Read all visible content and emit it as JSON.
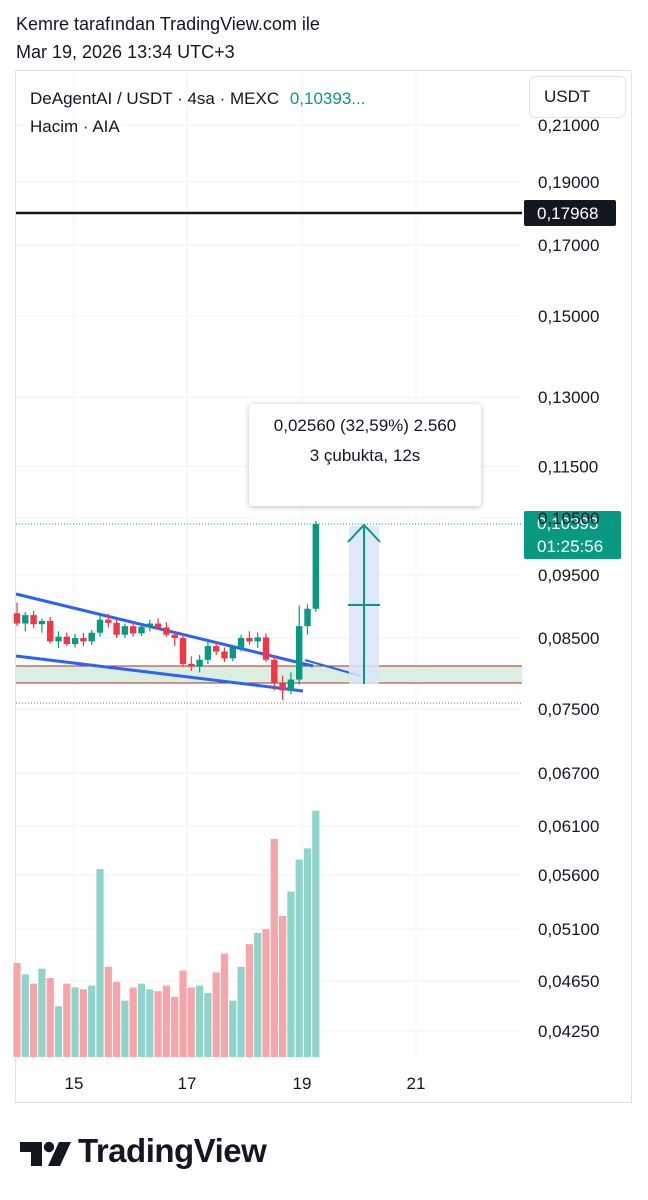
{
  "header": {
    "line1": "Kemre tarafından TradingView.com ile",
    "line2": "Mar 19, 2026 13:34 UTC+3"
  },
  "legend": {
    "symbol": "DeAgentAI / USDT · 4sa · MEXC",
    "price": "0,10393...",
    "volume_label": "Hacim · AIA"
  },
  "currency_button": "USDT",
  "measure": {
    "line1": "0,02560 (32,59%) 2.560",
    "line2": "3 çubukta, 12s"
  },
  "brand": "TradingView",
  "colors": {
    "up": "#089981",
    "down": "#f23645",
    "up_vol": "#8fd3cb",
    "down_vol": "#f6a5a9",
    "trendline": "#2962ff",
    "hline": "#131722",
    "range_fill": "#dbefe1",
    "range_line": "#b22833"
  },
  "chart_data": {
    "type": "candlestick",
    "price_axis_labels": [
      "0,21000",
      "0,19000",
      "0,17000",
      "0,15000",
      "0,13000",
      "0,11500",
      "0,10500",
      "0,09500",
      "0,08500",
      "0,07500",
      "0,06700",
      "0,06100",
      "0,05600",
      "0,05100",
      "0,04650",
      "0,04250"
    ],
    "price_axis_scale": "log",
    "x_tick_labels": [
      "15",
      "17",
      "19",
      "21"
    ],
    "horizontal_line": {
      "value": 0.17968,
      "label": "0,17968"
    },
    "last_price": {
      "value": 0.10393,
      "label": "0,10393",
      "countdown": "01:25:56"
    },
    "candles": [
      {
        "o": 0.0888,
        "h": 0.0905,
        "l": 0.0868,
        "c": 0.0872
      },
      {
        "o": 0.0872,
        "h": 0.089,
        "l": 0.086,
        "c": 0.0885
      },
      {
        "o": 0.0885,
        "h": 0.0892,
        "l": 0.0865,
        "c": 0.0871
      },
      {
        "o": 0.0871,
        "h": 0.088,
        "l": 0.0858,
        "c": 0.0876
      },
      {
        "o": 0.0876,
        "h": 0.0882,
        "l": 0.0842,
        "c": 0.0845
      },
      {
        "o": 0.0845,
        "h": 0.086,
        "l": 0.0835,
        "c": 0.0852
      },
      {
        "o": 0.0852,
        "h": 0.0858,
        "l": 0.0838,
        "c": 0.0841
      },
      {
        "o": 0.0841,
        "h": 0.0856,
        "l": 0.0836,
        "c": 0.085
      },
      {
        "o": 0.085,
        "h": 0.0858,
        "l": 0.0838,
        "c": 0.0845
      },
      {
        "o": 0.0845,
        "h": 0.0862,
        "l": 0.084,
        "c": 0.0858
      },
      {
        "o": 0.0858,
        "h": 0.0885,
        "l": 0.0852,
        "c": 0.0878
      },
      {
        "o": 0.0878,
        "h": 0.0887,
        "l": 0.0866,
        "c": 0.0873
      },
      {
        "o": 0.0873,
        "h": 0.0878,
        "l": 0.085,
        "c": 0.0855
      },
      {
        "o": 0.0855,
        "h": 0.0872,
        "l": 0.085,
        "c": 0.0868
      },
      {
        "o": 0.0868,
        "h": 0.0874,
        "l": 0.0852,
        "c": 0.0857
      },
      {
        "o": 0.0857,
        "h": 0.0872,
        "l": 0.0853,
        "c": 0.0867
      },
      {
        "o": 0.0867,
        "h": 0.0878,
        "l": 0.086,
        "c": 0.0872
      },
      {
        "o": 0.0872,
        "h": 0.088,
        "l": 0.0862,
        "c": 0.0866
      },
      {
        "o": 0.0866,
        "h": 0.0874,
        "l": 0.0852,
        "c": 0.0855
      },
      {
        "o": 0.0855,
        "h": 0.086,
        "l": 0.0838,
        "c": 0.085
      },
      {
        "o": 0.085,
        "h": 0.0856,
        "l": 0.0808,
        "c": 0.0812
      },
      {
        "o": 0.0812,
        "h": 0.0823,
        "l": 0.0802,
        "c": 0.0808
      },
      {
        "o": 0.0808,
        "h": 0.0825,
        "l": 0.08,
        "c": 0.0818
      },
      {
        "o": 0.0818,
        "h": 0.0845,
        "l": 0.0812,
        "c": 0.0838
      },
      {
        "o": 0.0838,
        "h": 0.0845,
        "l": 0.0825,
        "c": 0.083
      },
      {
        "o": 0.083,
        "h": 0.0836,
        "l": 0.0815,
        "c": 0.082
      },
      {
        "o": 0.082,
        "h": 0.084,
        "l": 0.0816,
        "c": 0.0836
      },
      {
        "o": 0.0836,
        "h": 0.0855,
        "l": 0.083,
        "c": 0.085
      },
      {
        "o": 0.085,
        "h": 0.086,
        "l": 0.084,
        "c": 0.0845
      },
      {
        "o": 0.0845,
        "h": 0.0858,
        "l": 0.0835,
        "c": 0.0851
      },
      {
        "o": 0.0851,
        "h": 0.0857,
        "l": 0.0815,
        "c": 0.0818
      },
      {
        "o": 0.0818,
        "h": 0.0825,
        "l": 0.0775,
        "c": 0.0785
      },
      {
        "o": 0.0785,
        "h": 0.0795,
        "l": 0.0762,
        "c": 0.0775
      },
      {
        "o": 0.0775,
        "h": 0.08,
        "l": 0.077,
        "c": 0.079
      },
      {
        "o": 0.079,
        "h": 0.09,
        "l": 0.0783,
        "c": 0.0868
      },
      {
        "o": 0.0868,
        "h": 0.0902,
        "l": 0.0855,
        "c": 0.0895
      },
      {
        "o": 0.0895,
        "h": 0.1045,
        "l": 0.089,
        "c": 0.1039
      }
    ],
    "volume": [
      0.5,
      0.44,
      0.39,
      0.47,
      0.42,
      0.27,
      0.39,
      0.37,
      0.36,
      0.38,
      1.0,
      0.48,
      0.4,
      0.3,
      0.37,
      0.39,
      0.36,
      0.35,
      0.38,
      0.32,
      0.46,
      0.37,
      0.38,
      0.34,
      0.45,
      0.55,
      0.3,
      0.48,
      0.6,
      0.66,
      0.68,
      1.16,
      0.75,
      0.88,
      1.05,
      1.11,
      1.31
    ],
    "measure": {
      "change": "0,02560",
      "percent": "32,59%",
      "ticks": "2.560",
      "bars": 3,
      "time": "12s"
    }
  }
}
